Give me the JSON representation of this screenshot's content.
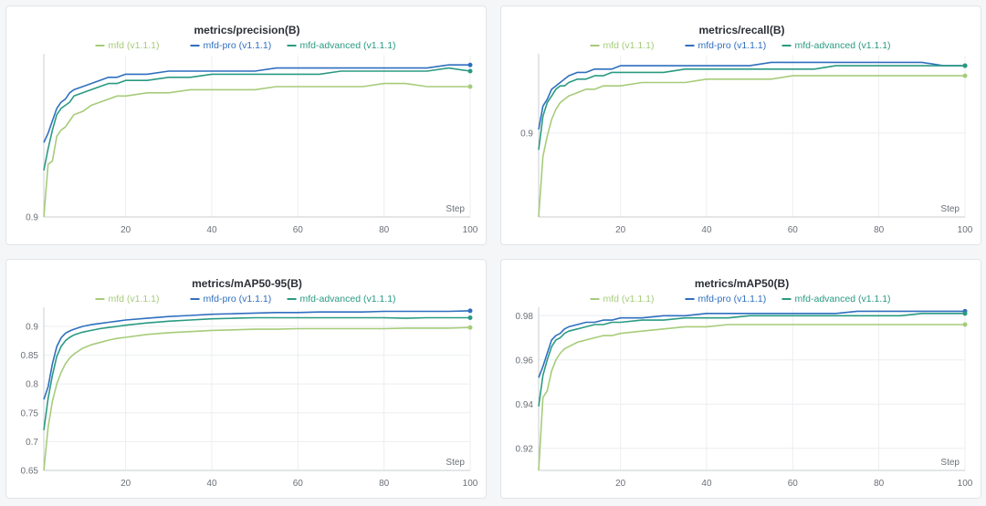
{
  "legend": [
    {
      "name": "mfd (v1.1.1)",
      "color": "#a6cc7a"
    },
    {
      "name": "mfd-pro (v1.1.1)",
      "color": "#2f6fbf"
    },
    {
      "name": "mfd-advanced (v1.1.1)",
      "color": "#2a9a82"
    }
  ],
  "chart_data": [
    {
      "type": "line",
      "title": "metrics/precision(B)",
      "xlabel": "Step",
      "xlim": [
        1,
        100
      ],
      "xticks": [
        "20",
        "40",
        "60",
        "80",
        "100"
      ],
      "ylim": [
        0.9,
        0.952
      ],
      "yticks": [
        "0.9"
      ],
      "series": [
        {
          "name": "mfd (v1.1.1)",
          "x": [
            1,
            2,
            3,
            4,
            5,
            6,
            7,
            8,
            10,
            12,
            14,
            16,
            18,
            20,
            25,
            30,
            35,
            40,
            45,
            50,
            55,
            60,
            65,
            70,
            75,
            80,
            85,
            90,
            95,
            100
          ],
          "values": [
            0.9,
            0.917,
            0.918,
            0.926,
            0.928,
            0.929,
            0.931,
            0.933,
            0.934,
            0.936,
            0.937,
            0.938,
            0.939,
            0.939,
            0.94,
            0.94,
            0.941,
            0.941,
            0.941,
            0.941,
            0.942,
            0.942,
            0.942,
            0.942,
            0.942,
            0.943,
            0.943,
            0.942,
            0.942,
            0.942
          ]
        },
        {
          "name": "mfd-pro (v1.1.1)",
          "x": [
            1,
            2,
            3,
            4,
            5,
            6,
            7,
            8,
            10,
            12,
            14,
            16,
            18,
            20,
            25,
            30,
            35,
            40,
            45,
            50,
            55,
            60,
            65,
            70,
            75,
            80,
            85,
            90,
            95,
            100
          ],
          "values": [
            0.924,
            0.927,
            0.931,
            0.935,
            0.937,
            0.938,
            0.94,
            0.941,
            0.942,
            0.943,
            0.944,
            0.945,
            0.945,
            0.946,
            0.946,
            0.947,
            0.947,
            0.947,
            0.947,
            0.947,
            0.948,
            0.948,
            0.948,
            0.948,
            0.948,
            0.948,
            0.948,
            0.948,
            0.949,
            0.949
          ]
        },
        {
          "name": "mfd-advanced (v1.1.1)",
          "x": [
            1,
            2,
            3,
            4,
            5,
            6,
            7,
            8,
            10,
            12,
            14,
            16,
            18,
            20,
            25,
            30,
            35,
            40,
            45,
            50,
            55,
            60,
            65,
            70,
            75,
            80,
            85,
            90,
            95,
            100
          ],
          "values": [
            0.915,
            0.922,
            0.928,
            0.933,
            0.935,
            0.936,
            0.937,
            0.939,
            0.94,
            0.941,
            0.942,
            0.943,
            0.943,
            0.944,
            0.944,
            0.945,
            0.945,
            0.946,
            0.946,
            0.946,
            0.946,
            0.946,
            0.946,
            0.947,
            0.947,
            0.947,
            0.947,
            0.947,
            0.948,
            0.947
          ]
        }
      ]
    },
    {
      "type": "line",
      "title": "metrics/recall(B)",
      "xlabel": "Step",
      "xlim": [
        1,
        100
      ],
      "xticks": [
        "20",
        "40",
        "60",
        "80",
        "100"
      ],
      "ylim": [
        0.875,
        0.923
      ],
      "yticks": [
        "0.9"
      ],
      "series": [
        {
          "name": "mfd (v1.1.1)",
          "x": [
            1,
            2,
            3,
            4,
            5,
            6,
            7,
            8,
            10,
            12,
            14,
            16,
            18,
            20,
            25,
            30,
            35,
            40,
            45,
            50,
            55,
            60,
            65,
            70,
            75,
            80,
            85,
            90,
            95,
            100
          ],
          "values": [
            0.875,
            0.893,
            0.899,
            0.904,
            0.907,
            0.909,
            0.91,
            0.911,
            0.912,
            0.913,
            0.913,
            0.914,
            0.914,
            0.914,
            0.915,
            0.915,
            0.915,
            0.916,
            0.916,
            0.916,
            0.916,
            0.917,
            0.917,
            0.917,
            0.917,
            0.917,
            0.917,
            0.917,
            0.917,
            0.917
          ]
        },
        {
          "name": "mfd-pro (v1.1.1)",
          "x": [
            1,
            2,
            3,
            4,
            5,
            6,
            7,
            8,
            10,
            12,
            14,
            16,
            18,
            20,
            25,
            30,
            35,
            40,
            45,
            50,
            55,
            60,
            65,
            70,
            75,
            80,
            85,
            90,
            95,
            100
          ],
          "values": [
            0.901,
            0.908,
            0.91,
            0.913,
            0.914,
            0.915,
            0.916,
            0.917,
            0.918,
            0.918,
            0.919,
            0.919,
            0.919,
            0.92,
            0.92,
            0.92,
            0.92,
            0.92,
            0.92,
            0.92,
            0.921,
            0.921,
            0.921,
            0.921,
            0.921,
            0.921,
            0.921,
            0.921,
            0.92,
            0.92
          ]
        },
        {
          "name": "mfd-advanced (v1.1.1)",
          "x": [
            1,
            2,
            3,
            4,
            5,
            6,
            7,
            8,
            10,
            12,
            14,
            16,
            18,
            20,
            25,
            30,
            35,
            40,
            45,
            50,
            55,
            60,
            65,
            70,
            75,
            80,
            85,
            90,
            95,
            100
          ],
          "values": [
            0.895,
            0.905,
            0.909,
            0.911,
            0.913,
            0.914,
            0.914,
            0.915,
            0.916,
            0.916,
            0.917,
            0.917,
            0.918,
            0.918,
            0.918,
            0.918,
            0.919,
            0.919,
            0.919,
            0.919,
            0.919,
            0.919,
            0.919,
            0.92,
            0.92,
            0.92,
            0.92,
            0.92,
            0.92,
            0.92
          ]
        }
      ]
    },
    {
      "type": "line",
      "title": "metrics/mAP50-95(B)",
      "xlabel": "Step",
      "xlim": [
        1,
        100
      ],
      "xticks": [
        "20",
        "40",
        "60",
        "80",
        "100"
      ],
      "ylim": [
        0.65,
        0.93
      ],
      "yticks": [
        "0.65",
        "0.7",
        "0.75",
        "0.8",
        "0.85",
        "0.9"
      ],
      "series": [
        {
          "name": "mfd (v1.1.1)",
          "x": [
            1,
            2,
            3,
            4,
            5,
            6,
            7,
            8,
            10,
            12,
            14,
            16,
            18,
            20,
            25,
            30,
            35,
            40,
            45,
            50,
            55,
            60,
            65,
            70,
            75,
            80,
            85,
            90,
            95,
            100
          ],
          "values": [
            0.65,
            0.725,
            0.77,
            0.8,
            0.82,
            0.835,
            0.845,
            0.852,
            0.862,
            0.868,
            0.872,
            0.876,
            0.879,
            0.881,
            0.886,
            0.889,
            0.891,
            0.893,
            0.894,
            0.895,
            0.895,
            0.896,
            0.896,
            0.896,
            0.896,
            0.896,
            0.897,
            0.897,
            0.897,
            0.898
          ]
        },
        {
          "name": "mfd-pro (v1.1.1)",
          "x": [
            1,
            2,
            3,
            4,
            5,
            6,
            7,
            8,
            10,
            12,
            14,
            16,
            18,
            20,
            25,
            30,
            35,
            40,
            45,
            50,
            55,
            60,
            65,
            70,
            75,
            80,
            85,
            90,
            95,
            100
          ],
          "values": [
            0.773,
            0.795,
            0.835,
            0.865,
            0.88,
            0.888,
            0.892,
            0.895,
            0.9,
            0.903,
            0.905,
            0.907,
            0.909,
            0.911,
            0.914,
            0.917,
            0.919,
            0.921,
            0.922,
            0.923,
            0.924,
            0.924,
            0.925,
            0.925,
            0.925,
            0.926,
            0.926,
            0.926,
            0.926,
            0.927
          ]
        },
        {
          "name": "mfd-advanced (v1.1.1)",
          "x": [
            1,
            2,
            3,
            4,
            5,
            6,
            7,
            8,
            10,
            12,
            14,
            16,
            18,
            20,
            25,
            30,
            35,
            40,
            45,
            50,
            55,
            60,
            65,
            70,
            75,
            80,
            85,
            90,
            95,
            100
          ],
          "values": [
            0.72,
            0.775,
            0.815,
            0.848,
            0.865,
            0.875,
            0.881,
            0.885,
            0.89,
            0.893,
            0.896,
            0.898,
            0.9,
            0.902,
            0.906,
            0.909,
            0.911,
            0.913,
            0.914,
            0.915,
            0.915,
            0.915,
            0.915,
            0.915,
            0.915,
            0.915,
            0.914,
            0.915,
            0.915,
            0.915
          ]
        }
      ]
    },
    {
      "type": "line",
      "title": "metrics/mAP50(B)",
      "xlabel": "Step",
      "xlim": [
        1,
        100
      ],
      "xticks": [
        "20",
        "40",
        "60",
        "80",
        "100"
      ],
      "ylim": [
        0.91,
        0.983
      ],
      "yticks": [
        "0.92",
        "0.94",
        "0.96",
        "0.98"
      ],
      "series": [
        {
          "name": "mfd (v1.1.1)",
          "x": [
            1,
            2,
            3,
            4,
            5,
            6,
            7,
            8,
            10,
            12,
            14,
            16,
            18,
            20,
            25,
            30,
            35,
            40,
            45,
            50,
            55,
            60,
            65,
            70,
            75,
            80,
            85,
            90,
            95,
            100
          ],
          "values": [
            0.91,
            0.943,
            0.946,
            0.955,
            0.96,
            0.963,
            0.965,
            0.966,
            0.968,
            0.969,
            0.97,
            0.971,
            0.971,
            0.972,
            0.973,
            0.974,
            0.975,
            0.975,
            0.976,
            0.976,
            0.976,
            0.976,
            0.976,
            0.976,
            0.976,
            0.976,
            0.976,
            0.976,
            0.976,
            0.976
          ]
        },
        {
          "name": "mfd-pro (v1.1.1)",
          "x": [
            1,
            2,
            3,
            4,
            5,
            6,
            7,
            8,
            10,
            12,
            14,
            16,
            18,
            20,
            25,
            30,
            35,
            40,
            45,
            50,
            55,
            60,
            65,
            70,
            75,
            80,
            85,
            90,
            95,
            100
          ],
          "values": [
            0.952,
            0.957,
            0.963,
            0.969,
            0.971,
            0.972,
            0.974,
            0.975,
            0.976,
            0.977,
            0.977,
            0.978,
            0.978,
            0.979,
            0.979,
            0.98,
            0.98,
            0.981,
            0.981,
            0.981,
            0.981,
            0.981,
            0.981,
            0.981,
            0.982,
            0.982,
            0.982,
            0.982,
            0.982,
            0.982
          ]
        },
        {
          "name": "mfd-advanced (v1.1.1)",
          "x": [
            1,
            2,
            3,
            4,
            5,
            6,
            7,
            8,
            10,
            12,
            14,
            16,
            18,
            20,
            25,
            30,
            35,
            40,
            45,
            50,
            55,
            60,
            65,
            70,
            75,
            80,
            85,
            90,
            95,
            100
          ],
          "values": [
            0.939,
            0.953,
            0.96,
            0.966,
            0.969,
            0.97,
            0.972,
            0.973,
            0.974,
            0.975,
            0.976,
            0.976,
            0.977,
            0.977,
            0.978,
            0.978,
            0.979,
            0.979,
            0.979,
            0.98,
            0.98,
            0.98,
            0.98,
            0.98,
            0.98,
            0.98,
            0.98,
            0.981,
            0.981,
            0.981
          ]
        }
      ]
    }
  ]
}
